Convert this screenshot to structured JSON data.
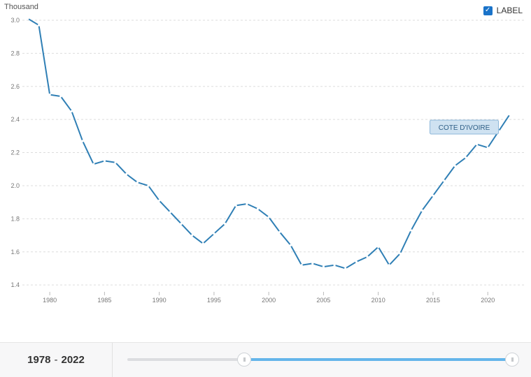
{
  "unit_label": "Thousand",
  "legend_toggle": {
    "label": "LABEL",
    "checked": true,
    "check_glyph": "✓"
  },
  "footer": {
    "range_start": "1978",
    "range_separator": "-",
    "range_end": "2022",
    "handle_glyph": "III"
  },
  "colors": {
    "line": "#2f7fb5",
    "label_bg": "#cfe2f1",
    "label_border": "#8db7d9",
    "label_text": "#2f5f86",
    "checkbox": "#1a73c9",
    "grid": "#dddddd",
    "slider_fill": "#64b5ea"
  },
  "chart_data": {
    "type": "line",
    "series": [
      {
        "name": "COTE D'IVOIRE",
        "x": [
          1978,
          1979,
          1980,
          1981,
          1982,
          1983,
          1984,
          1985,
          1986,
          1987,
          1988,
          1989,
          1990,
          1991,
          1992,
          1993,
          1994,
          1995,
          1996,
          1997,
          1998,
          1999,
          2000,
          2001,
          2002,
          2003,
          2004,
          2005,
          2006,
          2007,
          2008,
          2009,
          2010,
          2011,
          2012,
          2013,
          2014,
          2015,
          2016,
          2017,
          2018,
          2019,
          2020,
          2021,
          2022
        ],
        "values": [
          3.01,
          2.97,
          2.55,
          2.54,
          2.45,
          2.27,
          2.13,
          2.15,
          2.14,
          2.07,
          2.02,
          2.0,
          1.91,
          1.84,
          1.77,
          1.7,
          1.65,
          1.71,
          1.77,
          1.88,
          1.89,
          1.86,
          1.81,
          1.72,
          1.64,
          1.52,
          1.53,
          1.51,
          1.52,
          1.5,
          1.54,
          1.57,
          1.63,
          1.52,
          1.59,
          1.73,
          1.85,
          1.94,
          2.03,
          2.12,
          2.17,
          2.25,
          2.23,
          2.33,
          2.43
        ]
      }
    ],
    "x_ticks": [
      1980,
      1985,
      1990,
      1995,
      2000,
      2005,
      2010,
      2015,
      2020
    ],
    "y_ticks": [
      "1.4",
      "1.6",
      "1.8",
      "2.0",
      "2.2",
      "2.4",
      "2.6",
      "2.8",
      "3.0"
    ],
    "xlim": [
      1977.5,
      2023.5
    ],
    "ylim": [
      1.35,
      3.08
    ],
    "grid": "horizontal-dashed",
    "series_label_position": "line-end"
  }
}
